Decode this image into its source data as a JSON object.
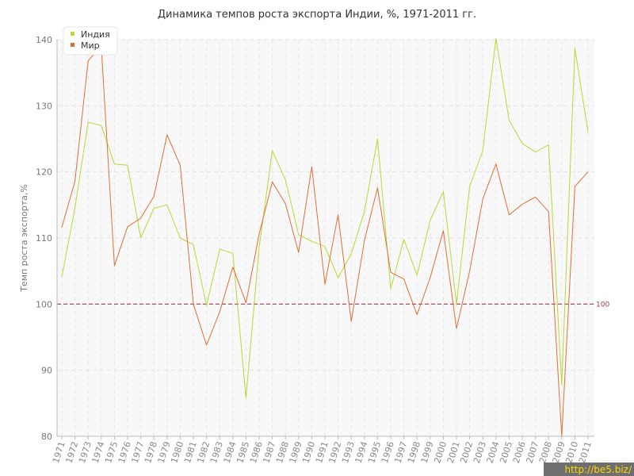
{
  "chart_data": {
    "type": "line",
    "title": "Динамика темпов роста экспорта Индии, %, 1971-2011 гг.",
    "xlabel": "",
    "ylabel": "Темп роста экспорта,%",
    "ylim": [
      80,
      140
    ],
    "yticks": [
      80,
      90,
      100,
      110,
      120,
      130,
      140
    ],
    "grid": true,
    "legend_position": "top-left",
    "x": [
      "1971",
      "1972",
      "1973",
      "1974",
      "1975",
      "1976",
      "1977",
      "1978",
      "1979",
      "1980",
      "1981",
      "1982",
      "1983",
      "1984",
      "1985",
      "1986",
      "1987",
      "1988",
      "1989",
      "1990",
      "1991",
      "1992",
      "1993",
      "1994",
      "1995",
      "1996",
      "1997",
      "1998",
      "1999",
      "2000",
      "2001",
      "2002",
      "2003",
      "2004",
      "2005",
      "2006",
      "2007",
      "2008",
      "2009",
      "2010",
      "2011"
    ],
    "series": [
      {
        "name": "Индия",
        "color": "#b8d832",
        "values": [
          104.1,
          114.6,
          127.5,
          127.0,
          121.2,
          121.0,
          110.0,
          114.5,
          115.0,
          110.0,
          109.0,
          99.8,
          108.3,
          107.7,
          85.8,
          108.6,
          123.2,
          118.8,
          110.5,
          109.5,
          108.7,
          104.0,
          107.6,
          114.0,
          125.0,
          102.3,
          109.8,
          104.4,
          112.7,
          117.0,
          100.0,
          117.8,
          123.2,
          140.2,
          127.8,
          124.3,
          123.0,
          124.1,
          87.8,
          138.7,
          126.0
        ]
      },
      {
        "name": "Мир",
        "color": "#e06e36",
        "values": [
          111.6,
          118.6,
          136.8,
          139.0,
          105.8,
          111.7,
          113.0,
          116.3,
          125.6,
          121.0,
          100.0,
          93.8,
          98.8,
          105.6,
          100.2,
          110.6,
          118.5,
          115.2,
          107.8,
          120.8,
          103.0,
          113.5,
          97.4,
          109.6,
          117.6,
          104.8,
          103.8,
          98.4,
          104.0,
          111.1,
          96.3,
          105.0,
          115.9,
          121.2,
          113.5,
          115.1,
          116.2,
          114.0,
          80.0,
          117.8,
          120.0
        ]
      }
    ],
    "reference_line": {
      "value": 100,
      "label": "100",
      "color": "#a04050"
    }
  },
  "watermark": {
    "text": "http://be5.biz/",
    "color": "#ffd800"
  }
}
